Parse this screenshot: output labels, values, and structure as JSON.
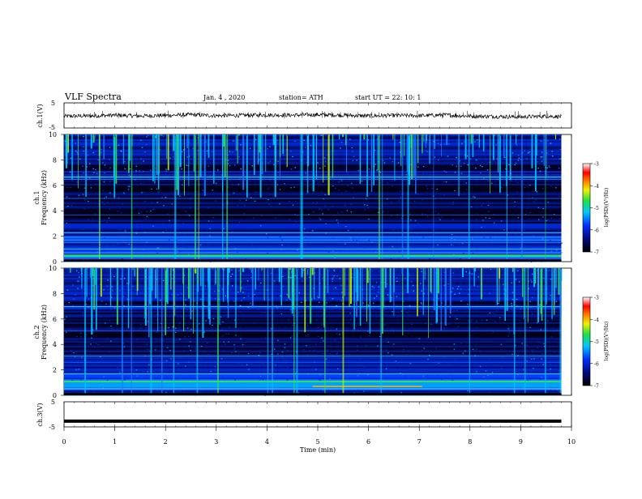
{
  "header": {
    "title": "VLF  Spectra",
    "date": "Jan. 4  , 2020",
    "station": "station= ATH",
    "start": "start  UT  =    22: 10: 1"
  },
  "chart_data": [
    {
      "type": "line",
      "panel": "ch1-waveform",
      "ylabel": "ch.1(V)",
      "ylim": [
        -5,
        5
      ],
      "yticks": [
        "5",
        "-5"
      ],
      "series": [
        {
          "x": [
            0,
            0.5,
            1,
            1.5,
            2,
            2.5,
            3,
            3.5,
            4,
            4.5,
            5,
            5.5,
            6,
            6.5,
            7,
            7.5,
            8,
            8.5,
            9,
            9.5,
            9.8
          ],
          "y": [
            -0.3,
            -0.2,
            0.1,
            -0.2,
            0.0,
            0.3,
            -0.1,
            0.0,
            0.2,
            0.1,
            0.3,
            0.1,
            -0.2,
            0.0,
            -0.1,
            0.2,
            -0.3,
            -0.4,
            -0.6,
            -0.3,
            -0.5
          ]
        }
      ]
    },
    {
      "type": "heatmap",
      "panel": "ch1-spectrogram",
      "ylabel": "ch.1\nFrequency (kHz)",
      "ylim": [
        0,
        10
      ],
      "xlim": [
        0,
        10
      ],
      "yticks": [
        "0",
        "2",
        "4",
        "6",
        "8",
        "10"
      ],
      "data_xmax": 9.8,
      "colorbar": {
        "label": "log(PSD)(V²/Hz)",
        "range": [
          -7,
          -3
        ],
        "ticks": [
          "-3",
          "-4",
          "-5",
          "-6",
          "-7"
        ]
      }
    },
    {
      "type": "heatmap",
      "panel": "ch2-spectrogram",
      "ylabel": "ch.2\nFrequency (kHz)",
      "ylim": [
        0,
        10
      ],
      "xlim": [
        0,
        10
      ],
      "yticks": [
        "0",
        "2",
        "4",
        "6",
        "8",
        "10"
      ],
      "data_xmax": 9.8,
      "colorbar": {
        "label": "log(PSD)(V²/Hz)",
        "range": [
          -7,
          -3
        ],
        "ticks": [
          "-3",
          "-4",
          "-5",
          "-6",
          "-7"
        ]
      }
    },
    {
      "type": "line",
      "panel": "ch3-waveform",
      "ylabel": "ch.3(V)",
      "xlabel": "Time  (min)",
      "xlim": [
        0,
        10
      ],
      "xticks": [
        "0",
        "1",
        "2",
        "3",
        "4",
        "5",
        "6",
        "7",
        "8",
        "9",
        "10"
      ],
      "ylim": [
        -5,
        5
      ],
      "yticks": [
        "5",
        "-5"
      ],
      "series": [
        {
          "x": [
            0,
            9.8
          ],
          "y": [
            -2.7,
            -2.7
          ]
        }
      ]
    }
  ]
}
